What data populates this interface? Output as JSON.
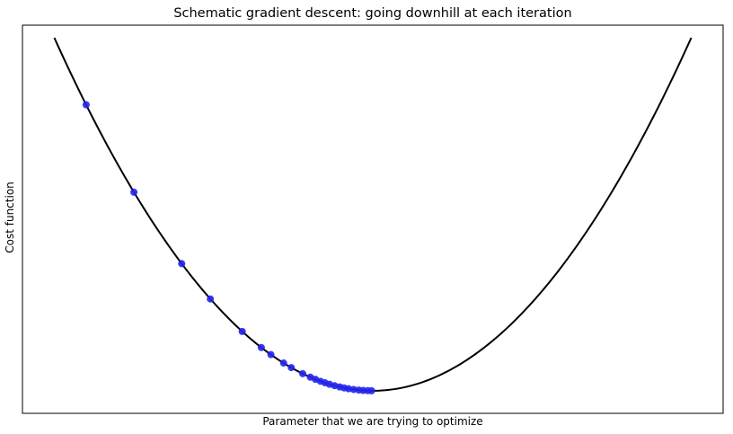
{
  "chart_data": {
    "type": "line",
    "title": "Schematic gradient descent: going downhill at each iteration",
    "xlabel": "Parameter that we are trying to optimize",
    "ylabel": "Cost function",
    "xticks": [],
    "yticks": [],
    "grid": false,
    "legend": "none",
    "series": [
      {
        "kind": "line",
        "color": "#000000",
        "x": [
          -5,
          -4,
          -3,
          -2,
          -1,
          0,
          1,
          2,
          3,
          4,
          5
        ],
        "y": [
          25,
          16,
          9,
          4,
          1,
          0,
          1,
          4,
          9,
          16,
          25
        ]
      },
      {
        "kind": "scatter",
        "color": "#2222ee",
        "x": [
          -4.5,
          -3.75,
          -3.0,
          -2.55,
          -2.05,
          -1.75,
          -1.6,
          -1.4,
          -1.28,
          -1.1,
          -0.98,
          -0.9,
          -0.82,
          -0.75,
          -0.68,
          -0.6,
          -0.52,
          -0.45,
          -0.38,
          -0.3,
          -0.22,
          -0.15,
          -0.08,
          -0.02
        ],
        "y": [
          20.25,
          14.06,
          9.0,
          6.5,
          4.2,
          3.06,
          2.56,
          1.96,
          1.64,
          1.21,
          0.96,
          0.81,
          0.67,
          0.56,
          0.46,
          0.36,
          0.27,
          0.2,
          0.14,
          0.09,
          0.05,
          0.02,
          0.01,
          0.0
        ]
      }
    ]
  }
}
